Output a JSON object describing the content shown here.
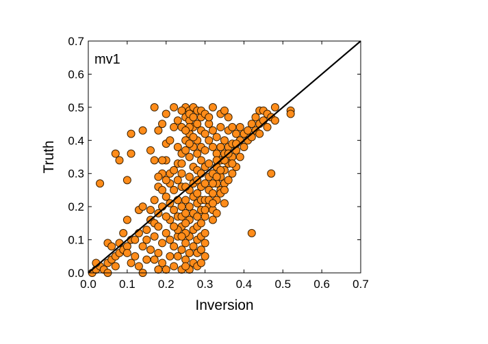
{
  "chart_data": {
    "type": "scatter",
    "title": "",
    "annotation": "mv1",
    "xlabel": "Inversion",
    "ylabel": "Truth",
    "xlim": [
      0.0,
      0.7
    ],
    "ylim": [
      0.0,
      0.7
    ],
    "xticks": [
      "0.0",
      "0.1",
      "0.2",
      "0.3",
      "0.4",
      "0.5",
      "0.6",
      "0.7"
    ],
    "yticks": [
      "0.0",
      "0.1",
      "0.2",
      "0.3",
      "0.4",
      "0.5",
      "0.6",
      "0.7"
    ],
    "grid": false,
    "marker_color": "#ff8c1a",
    "marker_edge": "#3a2000",
    "reference_line": {
      "x": [
        0.0,
        0.7
      ],
      "y": [
        0.0,
        0.7
      ],
      "color": "#000000"
    },
    "points": [
      [
        0.01,
        0.0
      ],
      [
        0.02,
        0.01
      ],
      [
        0.03,
        0.02
      ],
      [
        0.02,
        0.03
      ],
      [
        0.04,
        0.01
      ],
      [
        0.05,
        0.03
      ],
      [
        0.05,
        0.0
      ],
      [
        0.06,
        0.04
      ],
      [
        0.07,
        0.02
      ],
      [
        0.07,
        0.05
      ],
      [
        0.08,
        0.06
      ],
      [
        0.09,
        0.07
      ],
      [
        0.05,
        0.09
      ],
      [
        0.06,
        0.08
      ],
      [
        0.08,
        0.09
      ],
      [
        0.1,
        0.08
      ],
      [
        0.11,
        0.1
      ],
      [
        0.09,
        0.12
      ],
      [
        0.1,
        0.16
      ],
      [
        0.12,
        0.1
      ],
      [
        0.13,
        0.12
      ],
      [
        0.13,
        0.19
      ],
      [
        0.14,
        0.2
      ],
      [
        0.15,
        0.13
      ],
      [
        0.16,
        0.16
      ],
      [
        0.17,
        0.15
      ],
      [
        0.14,
        0.08
      ],
      [
        0.12,
        0.05
      ],
      [
        0.13,
        0.02
      ],
      [
        0.14,
        0.0
      ],
      [
        0.15,
        0.04
      ],
      [
        0.16,
        0.07
      ],
      [
        0.1,
        0.06
      ],
      [
        0.11,
        0.03
      ],
      [
        0.03,
        0.27
      ],
      [
        0.07,
        0.36
      ],
      [
        0.08,
        0.34
      ],
      [
        0.1,
        0.28
      ],
      [
        0.11,
        0.42
      ],
      [
        0.11,
        0.36
      ],
      [
        0.14,
        0.43
      ],
      [
        0.17,
        0.5
      ],
      [
        0.16,
        0.37
      ],
      [
        0.17,
        0.34
      ],
      [
        0.18,
        0.43
      ],
      [
        0.19,
        0.45
      ],
      [
        0.2,
        0.48
      ],
      [
        0.2,
        0.39
      ],
      [
        0.19,
        0.3
      ],
      [
        0.18,
        0.26
      ],
      [
        0.17,
        0.22
      ],
      [
        0.18,
        0.18
      ],
      [
        0.19,
        0.2
      ],
      [
        0.2,
        0.23
      ],
      [
        0.21,
        0.27
      ],
      [
        0.22,
        0.5
      ],
      [
        0.22,
        0.44
      ],
      [
        0.21,
        0.4
      ],
      [
        0.2,
        0.34
      ],
      [
        0.21,
        0.3
      ],
      [
        0.22,
        0.25
      ],
      [
        0.23,
        0.22
      ],
      [
        0.24,
        0.26
      ],
      [
        0.22,
        0.19
      ],
      [
        0.21,
        0.16
      ],
      [
        0.2,
        0.12
      ],
      [
        0.19,
        0.09
      ],
      [
        0.18,
        0.06
      ],
      [
        0.19,
        0.03
      ],
      [
        0.2,
        0.01
      ],
      [
        0.21,
        0.05
      ],
      [
        0.22,
        0.08
      ],
      [
        0.23,
        0.11
      ],
      [
        0.24,
        0.14
      ],
      [
        0.23,
        0.17
      ],
      [
        0.24,
        0.2
      ],
      [
        0.25,
        0.22
      ],
      [
        0.24,
        0.3
      ],
      [
        0.23,
        0.33
      ],
      [
        0.24,
        0.36
      ],
      [
        0.25,
        0.4
      ],
      [
        0.24,
        0.44
      ],
      [
        0.25,
        0.47
      ],
      [
        0.25,
        0.5
      ],
      [
        0.26,
        0.49
      ],
      [
        0.27,
        0.5
      ],
      [
        0.26,
        0.46
      ],
      [
        0.27,
        0.44
      ],
      [
        0.26,
        0.42
      ],
      [
        0.27,
        0.38
      ],
      [
        0.26,
        0.35
      ],
      [
        0.27,
        0.32
      ],
      [
        0.26,
        0.29
      ],
      [
        0.27,
        0.27
      ],
      [
        0.26,
        0.25
      ],
      [
        0.27,
        0.23
      ],
      [
        0.26,
        0.2
      ],
      [
        0.27,
        0.18
      ],
      [
        0.26,
        0.16
      ],
      [
        0.27,
        0.13
      ],
      [
        0.26,
        0.11
      ],
      [
        0.27,
        0.08
      ],
      [
        0.26,
        0.06
      ],
      [
        0.27,
        0.03
      ],
      [
        0.26,
        0.01
      ],
      [
        0.25,
        0.04
      ],
      [
        0.25,
        0.09
      ],
      [
        0.24,
        0.07
      ],
      [
        0.25,
        0.12
      ],
      [
        0.25,
        0.15
      ],
      [
        0.24,
        0.17
      ],
      [
        0.25,
        0.18
      ],
      [
        0.28,
        0.02
      ],
      [
        0.28,
        0.06
      ],
      [
        0.28,
        0.1
      ],
      [
        0.28,
        0.14
      ],
      [
        0.28,
        0.17
      ],
      [
        0.28,
        0.21
      ],
      [
        0.28,
        0.24
      ],
      [
        0.28,
        0.28
      ],
      [
        0.28,
        0.31
      ],
      [
        0.28,
        0.36
      ],
      [
        0.28,
        0.4
      ],
      [
        0.28,
        0.45
      ],
      [
        0.28,
        0.49
      ],
      [
        0.29,
        0.47
      ],
      [
        0.29,
        0.43
      ],
      [
        0.29,
        0.38
      ],
      [
        0.29,
        0.34
      ],
      [
        0.29,
        0.3
      ],
      [
        0.29,
        0.26
      ],
      [
        0.29,
        0.22
      ],
      [
        0.29,
        0.19
      ],
      [
        0.29,
        0.15
      ],
      [
        0.29,
        0.11
      ],
      [
        0.29,
        0.07
      ],
      [
        0.29,
        0.03
      ],
      [
        0.3,
        0.05
      ],
      [
        0.3,
        0.12
      ],
      [
        0.3,
        0.17
      ],
      [
        0.3,
        0.22
      ],
      [
        0.3,
        0.27
      ],
      [
        0.3,
        0.32
      ],
      [
        0.3,
        0.37
      ],
      [
        0.31,
        0.2
      ],
      [
        0.31,
        0.25
      ],
      [
        0.31,
        0.29
      ],
      [
        0.31,
        0.33
      ],
      [
        0.31,
        0.4
      ],
      [
        0.31,
        0.45
      ],
      [
        0.32,
        0.5
      ],
      [
        0.32,
        0.43
      ],
      [
        0.32,
        0.3
      ],
      [
        0.32,
        0.24
      ],
      [
        0.32,
        0.19
      ],
      [
        0.33,
        0.22
      ],
      [
        0.33,
        0.27
      ],
      [
        0.33,
        0.32
      ],
      [
        0.33,
        0.36
      ],
      [
        0.33,
        0.41
      ],
      [
        0.34,
        0.48
      ],
      [
        0.34,
        0.44
      ],
      [
        0.34,
        0.38
      ],
      [
        0.34,
        0.34
      ],
      [
        0.34,
        0.29
      ],
      [
        0.34,
        0.25
      ],
      [
        0.35,
        0.21
      ],
      [
        0.35,
        0.27
      ],
      [
        0.35,
        0.31
      ],
      [
        0.35,
        0.36
      ],
      [
        0.35,
        0.4
      ],
      [
        0.35,
        0.49
      ],
      [
        0.36,
        0.47
      ],
      [
        0.36,
        0.43
      ],
      [
        0.36,
        0.38
      ],
      [
        0.36,
        0.33
      ],
      [
        0.36,
        0.28
      ],
      [
        0.37,
        0.3
      ],
      [
        0.37,
        0.35
      ],
      [
        0.37,
        0.39
      ],
      [
        0.37,
        0.44
      ],
      [
        0.38,
        0.42
      ],
      [
        0.38,
        0.37
      ],
      [
        0.38,
        0.32
      ],
      [
        0.39,
        0.35
      ],
      [
        0.39,
        0.4
      ],
      [
        0.39,
        0.44
      ],
      [
        0.4,
        0.42
      ],
      [
        0.4,
        0.38
      ],
      [
        0.41,
        0.4
      ],
      [
        0.41,
        0.43
      ],
      [
        0.42,
        0.41
      ],
      [
        0.42,
        0.45
      ],
      [
        0.43,
        0.43
      ],
      [
        0.43,
        0.47
      ],
      [
        0.44,
        0.42
      ],
      [
        0.44,
        0.45
      ],
      [
        0.44,
        0.49
      ],
      [
        0.45,
        0.46
      ],
      [
        0.45,
        0.49
      ],
      [
        0.46,
        0.44
      ],
      [
        0.46,
        0.48
      ],
      [
        0.47,
        0.47
      ],
      [
        0.48,
        0.5
      ],
      [
        0.48,
        0.46
      ],
      [
        0.47,
        0.3
      ],
      [
        0.42,
        0.12
      ],
      [
        0.52,
        0.49
      ],
      [
        0.52,
        0.48
      ],
      [
        0.32,
        0.16
      ],
      [
        0.3,
        0.09
      ],
      [
        0.23,
        0.05
      ],
      [
        0.22,
        0.02
      ],
      [
        0.24,
        0.01
      ],
      [
        0.25,
        0.02
      ],
      [
        0.21,
        0.1
      ],
      [
        0.23,
        0.13
      ],
      [
        0.22,
        0.14
      ],
      [
        0.24,
        0.11
      ],
      [
        0.25,
        0.26
      ],
      [
        0.23,
        0.28
      ],
      [
        0.22,
        0.31
      ],
      [
        0.24,
        0.33
      ],
      [
        0.23,
        0.38
      ],
      [
        0.25,
        0.37
      ],
      [
        0.26,
        0.39
      ],
      [
        0.27,
        0.41
      ],
      [
        0.26,
        0.44
      ],
      [
        0.25,
        0.43
      ],
      [
        0.2,
        0.28
      ],
      [
        0.19,
        0.25
      ],
      [
        0.21,
        0.21
      ],
      [
        0.2,
        0.17
      ],
      [
        0.18,
        0.14
      ],
      [
        0.17,
        0.11
      ],
      [
        0.16,
        0.19
      ],
      [
        0.15,
        0.1
      ],
      [
        0.18,
        0.01
      ],
      [
        0.17,
        0.04
      ],
      [
        0.18,
        0.29
      ],
      [
        0.19,
        0.34
      ],
      [
        0.24,
        0.49
      ],
      [
        0.23,
        0.46
      ],
      [
        0.26,
        0.48
      ],
      [
        0.27,
        0.47
      ],
      [
        0.29,
        0.49
      ],
      [
        0.3,
        0.48
      ],
      [
        0.31,
        0.47
      ],
      [
        0.3,
        0.42
      ],
      [
        0.32,
        0.38
      ],
      [
        0.33,
        0.34
      ],
      [
        0.34,
        0.31
      ],
      [
        0.35,
        0.34
      ],
      [
        0.36,
        0.36
      ],
      [
        0.37,
        0.33
      ],
      [
        0.38,
        0.39
      ],
      [
        0.33,
        0.29
      ],
      [
        0.32,
        0.27
      ],
      [
        0.31,
        0.22
      ],
      [
        0.3,
        0.19
      ],
      [
        0.32,
        0.21
      ],
      [
        0.34,
        0.24
      ],
      [
        0.35,
        0.25
      ],
      [
        0.33,
        0.18
      ]
    ]
  }
}
